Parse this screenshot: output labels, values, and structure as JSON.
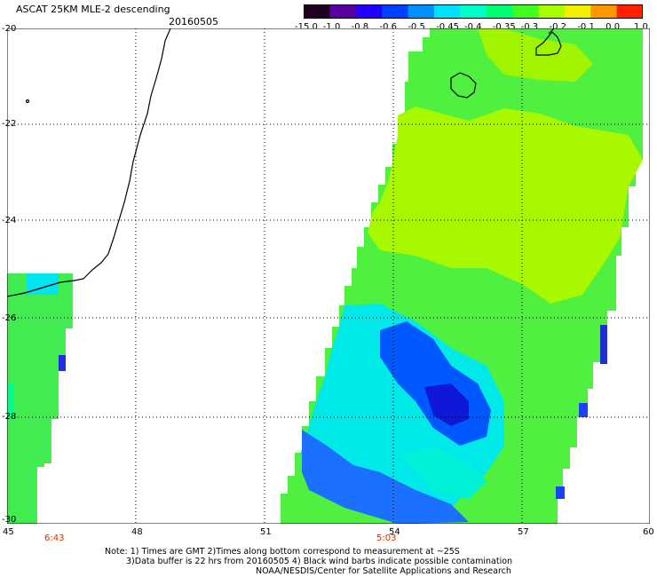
{
  "header": {
    "title": "ASCAT 25KM MLE-2 descending",
    "date": "20160505"
  },
  "colorbar": {
    "labels": [
      "-15.0",
      "-1.0",
      "-0.8",
      "-0.6",
      "-0.5",
      "-0.45",
      "-0.4",
      "-0.35",
      "-0.3",
      "-0.2",
      "-0.1",
      "0.0",
      "1.0"
    ],
    "colors": [
      "#200020",
      "#5800a0",
      "#2000ff",
      "#0040ff",
      "#0090ff",
      "#00e0ff",
      "#00ffc8",
      "#00ff70",
      "#40ff20",
      "#a8ff00",
      "#f0f000",
      "#ff9800",
      "#ff2000"
    ]
  },
  "map": {
    "lat_labels": [
      "-20",
      "-22",
      "-24",
      "-26",
      "-28",
      "-30"
    ],
    "lon_labels": [
      "45",
      "48",
      "51",
      "54",
      "57",
      "60"
    ],
    "lat_range": [
      -30,
      -20
    ],
    "lon_range": [
      45,
      60
    ],
    "pass_times": [
      "6:43",
      "5:03"
    ],
    "colors": {
      "swath_green": "#50f040",
      "swath_yellowgreen": "#a8f800",
      "swath_cyan": "#00f0f0",
      "swath_blue": "#0050ff",
      "swath_deepblue": "#1020e0",
      "coastline": "#000000",
      "grid": "#000000",
      "time_label": "#c83200"
    }
  },
  "notes": {
    "line1": "Note: 1) Times are GMT 2)Times along bottom correspond to measurement at ~25S",
    "line2": "3)Data buffer is 22 hrs from 20160505 4) Black wind barbs indicate possible contamination",
    "line3": "NOAA/NESDIS/Center for Satellite Applications and Research"
  }
}
